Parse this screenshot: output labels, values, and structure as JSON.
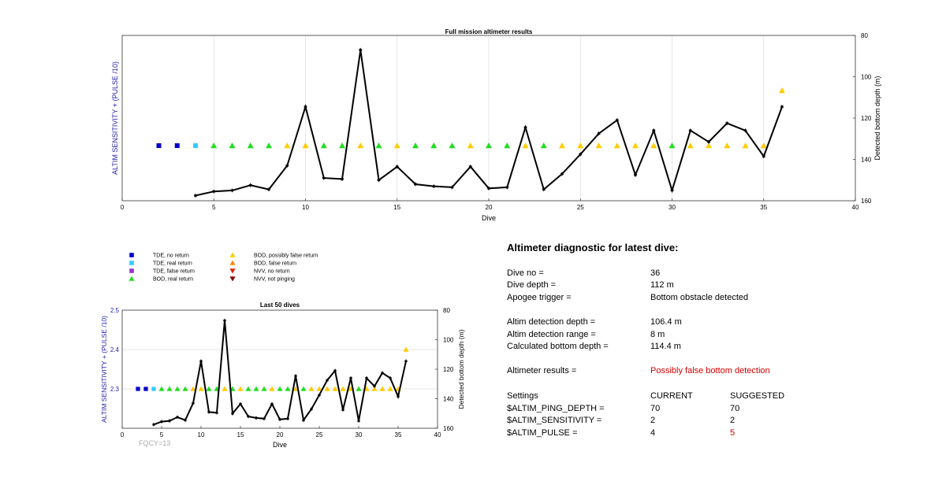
{
  "chart_data": [
    {
      "type": "scatter",
      "title": "Full mission altimeter results",
      "xlabel": "Dive",
      "ylabel_left": "ALTIM SENSITIVITY + (PULSE /10)",
      "ylabel_right": "Detected bottom depth (m)",
      "xlim": [
        0,
        40
      ],
      "xticks": [
        "0",
        "5",
        "10",
        "15",
        "20",
        "25",
        "30",
        "35",
        "40"
      ],
      "y_right_lim": [
        80,
        160
      ],
      "y_right_ticks": [
        "80",
        "100",
        "120",
        "140",
        "160"
      ],
      "grid_x": true,
      "markers": {
        "tde_no_return": [
          2,
          3
        ],
        "tde_real_return": [
          4
        ],
        "bod_real_return": [
          5,
          6,
          7,
          8,
          11,
          12,
          14,
          16,
          17,
          18,
          20,
          21,
          23,
          30
        ],
        "bod_possibly_false": [
          9,
          10,
          13,
          15,
          19,
          22,
          24,
          25,
          26,
          27,
          28,
          29,
          31,
          32,
          33,
          34,
          35
        ]
      },
      "marker_level": 2.3,
      "highlight_point": {
        "x": 36,
        "y": 2.4
      },
      "bottom_depth": {
        "x": [
          4,
          5,
          6,
          7,
          8,
          9,
          10,
          11,
          12,
          13,
          14,
          15,
          16,
          17,
          18,
          19,
          20,
          21,
          22,
          23,
          24,
          25,
          26,
          27,
          28,
          29,
          30,
          31,
          32,
          33,
          34,
          35,
          36
        ],
        "y": [
          157.5,
          155.5,
          155,
          152.5,
          154.5,
          143,
          114.5,
          149,
          149.5,
          87,
          150,
          143.5,
          152,
          153,
          153.5,
          143.5,
          154,
          153.5,
          124.5,
          154.5,
          147,
          137.5,
          127.5,
          121,
          147.5,
          126,
          155,
          126,
          131.5,
          122.5,
          126,
          138.5,
          114.5
        ]
      }
    },
    {
      "type": "scatter",
      "title": "Last 50 dives",
      "xlabel": "Dive",
      "ylabel_left": "ALTIM SENSITIVITY + (PULSE /10)",
      "ylabel_right": "Detected bottom depth (m)",
      "xlim": [
        0,
        40
      ],
      "xticks": [
        "0",
        "5",
        "10",
        "15",
        "20",
        "25",
        "30",
        "35",
        "40"
      ],
      "ylim": [
        2.2,
        2.5
      ],
      "yticks": [
        "2.3",
        "2.4",
        "2.5"
      ],
      "y_right_lim": [
        80,
        160
      ],
      "y_right_ticks": [
        "80",
        "100",
        "120",
        "140",
        "160"
      ],
      "grid_y": true,
      "footer": "FQCY=13"
    }
  ],
  "legend": [
    {
      "label": "TDE, no return",
      "color": "#0000cc",
      "shape": "square"
    },
    {
      "label": "TDE, real return",
      "color": "#33ccff",
      "shape": "square"
    },
    {
      "label": "TDE, false return",
      "color": "#9933cc",
      "shape": "square"
    },
    {
      "label": "BOD, real return",
      "color": "#22dd22",
      "shape": "triangle-up"
    },
    {
      "label": "BOD, possibly false return",
      "color": "#ffcc00",
      "shape": "triangle-up"
    },
    {
      "label": "BOD, false return",
      "color": "#ff8800",
      "shape": "triangle-up"
    },
    {
      "label": "NVV, no return",
      "color": "#dd2200",
      "shape": "triangle-down"
    },
    {
      "label": "NVV, not pinging",
      "color": "#880000",
      "shape": "triangle-down"
    }
  ],
  "diagnostic": {
    "title": "Altimeter diagnostic for latest dive:",
    "dive_no_label": "Dive no =",
    "dive_no": "36",
    "dive_depth_label": "Dive depth =",
    "dive_depth": "112 m",
    "apogee_label": "Apogee trigger =",
    "apogee": "Bottom obstacle detected",
    "altim_depth_label": "Altim detection depth =",
    "altim_depth": "106.4 m",
    "altim_range_label": "Altim detection range =",
    "altim_range": "8 m",
    "calc_depth_label": "Calculated bottom depth =",
    "calc_depth": "114.4 m",
    "results_label": "Altimeter results =",
    "results": "Possibly false bottom detection",
    "settings_label": "Settings",
    "current_label": "CURRENT",
    "suggested_label": "SUGGESTED",
    "rows": [
      {
        "name": "$ALTIM_PING_DEPTH =",
        "current": "70",
        "suggested": "70"
      },
      {
        "name": "$ALTIM_SENSITIVITY =",
        "current": "2",
        "suggested": "2"
      },
      {
        "name": "$ALTIM_PULSE =",
        "current": "4",
        "suggested": "5"
      }
    ]
  },
  "colors": {
    "left_axis_label": "#2222aa",
    "result_red": "#d40000",
    "line": "#000000",
    "grid": "#dddddd"
  }
}
